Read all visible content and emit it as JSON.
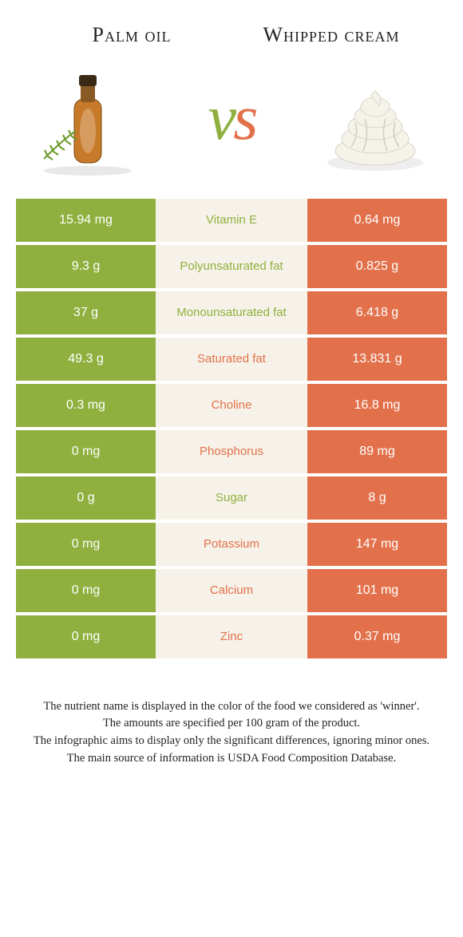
{
  "colors": {
    "green": "#8fb03e",
    "orange": "#e2714b",
    "mid_bg": "#f7f2e9",
    "white": "#ffffff",
    "text": "#222222"
  },
  "header": {
    "left_title": "Palm oil",
    "right_title": "Whipped cream",
    "vs_v": "v",
    "vs_s": "s"
  },
  "images": {
    "left_alt": "palm-oil-bottle-with-herb",
    "right_alt": "whipped-cream-swirl"
  },
  "rows": [
    {
      "left": "15.94 mg",
      "label": "Vitamin E",
      "right": "0.64 mg",
      "winner": "left"
    },
    {
      "left": "9.3 g",
      "label": "Polyunsaturated fat",
      "right": "0.825 g",
      "winner": "left"
    },
    {
      "left": "37 g",
      "label": "Monounsaturated fat",
      "right": "6.418 g",
      "winner": "left"
    },
    {
      "left": "49.3 g",
      "label": "Saturated fat",
      "right": "13.831 g",
      "winner": "right"
    },
    {
      "left": "0.3 mg",
      "label": "Choline",
      "right": "16.8 mg",
      "winner": "right"
    },
    {
      "left": "0 mg",
      "label": "Phosphorus",
      "right": "89 mg",
      "winner": "right"
    },
    {
      "left": "0 g",
      "label": "Sugar",
      "right": "8 g",
      "winner": "left"
    },
    {
      "left": "0 mg",
      "label": "Potassium",
      "right": "147 mg",
      "winner": "right"
    },
    {
      "left": "0 mg",
      "label": "Calcium",
      "right": "101 mg",
      "winner": "right"
    },
    {
      "left": "0 mg",
      "label": "Zinc",
      "right": "0.37 mg",
      "winner": "right"
    }
  ],
  "footer": {
    "line1": "The nutrient name is displayed in the color of the food we considered as 'winner'.",
    "line2": "The amounts are specified per 100 gram of the product.",
    "line3": "The infographic aims to display only the significant differences, ignoring minor ones.",
    "line4": "The main source of information is USDA Food Composition Database."
  }
}
